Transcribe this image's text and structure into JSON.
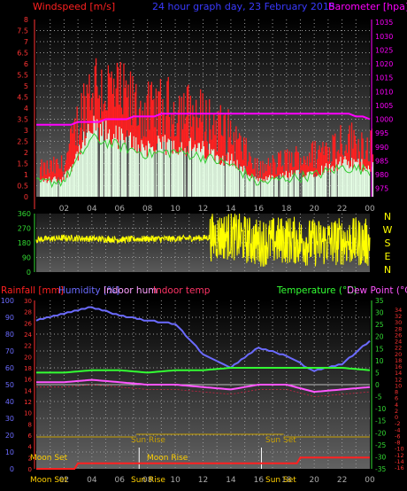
{
  "header": {
    "windspeed_label": "Windspeed [m/s]",
    "title": "24 hour graph day, 23 February 2015",
    "barometer_label": "Barometer [hpa]"
  },
  "colors": {
    "windspeed": "#ff2020",
    "gust_fill": "#e6ffe6",
    "avg_wind": "#33cc33",
    "barometer": "#ff00ff",
    "wind_dir": "#ffff00",
    "rainfall": "#ff2020",
    "humidity": "#6b6bff",
    "indoor_hum": "#ffa0ff",
    "indoor_temp": "#ff3366",
    "temperature": "#33ff33",
    "dew_point": "#ff55ff",
    "sun": "#c8a000",
    "moon": "#ffd000",
    "axis_green": "#33dd33",
    "axis_blue": "#6b6bff",
    "axis_red": "#ff3333"
  },
  "x_axis": {
    "hours": [
      "02",
      "04",
      "06",
      "08",
      "10",
      "12",
      "14",
      "16",
      "18",
      "20",
      "22",
      "00"
    ]
  },
  "panel_wind": {
    "left_ticks": [
      "8",
      "7.5",
      "7",
      "6.5",
      "6",
      "5.5",
      "5",
      "4.5",
      "4",
      "3.5",
      "3",
      "2.5",
      "2",
      "1.5",
      "1",
      "0.5",
      "0"
    ],
    "right_ticks": [
      "1035",
      "1030",
      "1025",
      "1020",
      "1015",
      "1010",
      "1005",
      "1000",
      "995",
      "990",
      "985",
      "980",
      "975"
    ]
  },
  "panel_direction": {
    "left_ticks": [
      "360",
      "270",
      "180",
      "90",
      "0"
    ],
    "compass": [
      "N",
      "W",
      "S",
      "E",
      "N"
    ]
  },
  "panel_temp": {
    "legend": {
      "rainfall": "Rainfall [mm]",
      "humidity": "Humidity [%]",
      "indoor_hum": "Indoor hum",
      "indoor_temp": "Indoor temp",
      "temperature": "Temperature (°C)",
      "dew_point": "Dew Point (°C)"
    },
    "humidity_ticks": [
      "100",
      "90",
      "80",
      "70",
      "60",
      "50",
      "40",
      "30",
      "20",
      "10",
      "0"
    ],
    "rain_ticks": [
      "30",
      "28",
      "26",
      "24",
      "22",
      "20",
      "18",
      "16",
      "14",
      "12",
      "10",
      "8",
      "6",
      "4",
      "2",
      "0"
    ],
    "temp_ticks": [
      "35",
      "30",
      "25",
      "20",
      "15",
      "10",
      "5",
      "0",
      "-5",
      "-10",
      "-15",
      "-20",
      "-25",
      "-30",
      "-35"
    ],
    "dew_ticks": [
      "34",
      "32",
      "30",
      "28",
      "26",
      "24",
      "22",
      "20",
      "18",
      "16",
      "14",
      "12",
      "10",
      "8",
      "6",
      "4",
      "2",
      "0",
      "-2",
      "-4",
      "-6",
      "-8",
      "-10",
      "-12",
      "-14",
      "-16"
    ],
    "events": {
      "moon_set": "Moon Set",
      "moon_rise": "Moon Rise",
      "sun_rise": "Sun Rise",
      "sun_set": "Sun Set"
    },
    "bottom_labels": {
      "moon_set": "Moon Set",
      "sun_rise": "Sun Rise",
      "sun_set": "Sun Set"
    }
  },
  "chart_data": [
    {
      "type": "line",
      "title": "24 hour graph day, 23 February 2015",
      "ylabel": "Windspeed [m/s]",
      "ylim": [
        0,
        8
      ],
      "y2label": "Barometer [hpa]",
      "y2lim": [
        972,
        1036
      ],
      "x": [
        "00",
        "02",
        "04",
        "06",
        "08",
        "10",
        "12",
        "14",
        "16",
        "18",
        "20",
        "22",
        "00"
      ],
      "series": [
        {
          "name": "Windspeed [m/s]",
          "values": [
            1.0,
            1.2,
            4.4,
            3.8,
            3.2,
            3.4,
            3.0,
            2.4,
            1.0,
            1.4,
            1.6,
            2.2,
            2.0
          ]
        },
        {
          "name": "Barometer [hpa]",
          "values": [
            998,
            998,
            999,
            1000,
            1001,
            1002,
            1002,
            1002,
            1002,
            1002,
            1002,
            1002,
            1000
          ]
        }
      ]
    },
    {
      "type": "scatter",
      "ylabel": "Wind direction",
      "ylim": [
        0,
        360
      ],
      "x": [
        "00",
        "02",
        "04",
        "06",
        "08",
        "10",
        "12",
        "14",
        "16",
        "18",
        "20",
        "22",
        "00"
      ],
      "series": [
        {
          "name": "Wind direction",
          "values": [
            200,
            210,
            205,
            200,
            205,
            205,
            210,
            225,
            180,
            200,
            180,
            190,
            180
          ]
        }
      ]
    },
    {
      "type": "line",
      "x": [
        "00",
        "02",
        "04",
        "06",
        "08",
        "10",
        "12",
        "14",
        "16",
        "18",
        "20",
        "22",
        "00"
      ],
      "ylim_humidity": [
        0,
        100
      ],
      "ylim_temperature": [
        -35,
        35
      ],
      "series": [
        {
          "name": "Humidity [%]",
          "values": [
            88,
            92,
            96,
            91,
            88,
            86,
            68,
            60,
            72,
            67,
            58,
            62,
            76
          ]
        },
        {
          "name": "Temperature (°C)",
          "values": [
            5,
            5,
            6,
            6,
            5,
            6,
            6,
            7,
            7,
            7,
            7,
            7,
            6
          ]
        },
        {
          "name": "Dew Point (°C)",
          "values": [
            1,
            1,
            2,
            1,
            0,
            0,
            -1,
            -2,
            0,
            0,
            -3,
            -2,
            -1
          ]
        },
        {
          "name": "Rainfall [mm]",
          "values": [
            0,
            0,
            1,
            1,
            1,
            1,
            1,
            1,
            1,
            1,
            2,
            2,
            2
          ]
        }
      ]
    }
  ]
}
